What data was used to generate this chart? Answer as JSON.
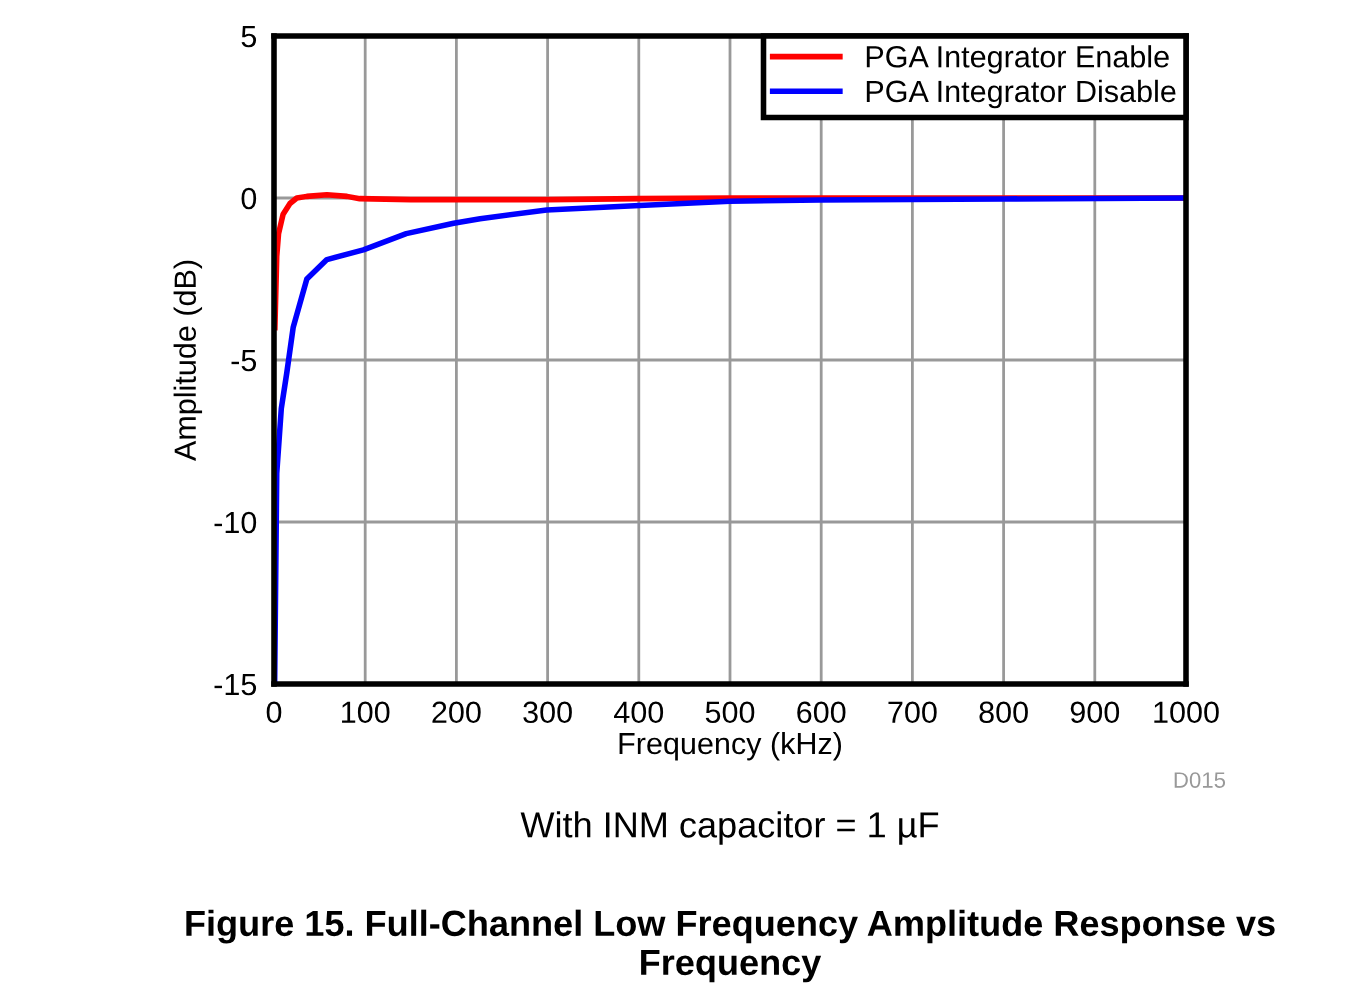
{
  "chart_data": {
    "type": "line",
    "title": "Figure 15. Full-Channel Low Frequency Amplitude Response vs Frequency",
    "subtitle": "With INM capacitor = 1 µF",
    "xlabel": "Frequency (kHz)",
    "ylabel": "Amplitude (dB)",
    "annotations": [
      "D015"
    ],
    "xlim": [
      0,
      1000
    ],
    "xticks": [
      0,
      100,
      200,
      300,
      400,
      500,
      600,
      700,
      800,
      900,
      1000
    ],
    "ylim": [
      -15,
      5
    ],
    "yticks": [
      -15,
      -10,
      -5,
      0,
      5
    ],
    "grid": true,
    "legend": "top right",
    "line_style": "solid",
    "marker": "none",
    "series": [
      {
        "name": "PGA Integrator Enable",
        "color": "#ff0000",
        "x": [
          1,
          3,
          5,
          10,
          17.5,
          25,
          36,
          58,
          80,
          94,
          150,
          200,
          300,
          400,
          500,
          700,
          1000
        ],
        "values": [
          -4,
          -1.8,
          -1.1,
          -0.5,
          -0.17,
          0,
          0.05,
          0.1,
          0.05,
          -0.02,
          -0.05,
          -0.05,
          -0.05,
          -0.02,
          0,
          0,
          0
        ]
      },
      {
        "name": "PGA Integrator Disable",
        "color": "#0000ff",
        "x": [
          0.7,
          3,
          8,
          14,
          21,
          36,
          58,
          98,
          145,
          197,
          226,
          299,
          401,
          500,
          599,
          800,
          1000
        ],
        "values": [
          -15,
          -8.5,
          -6.5,
          -5.4,
          -4,
          -2.5,
          -1.9,
          -1.6,
          -1.1,
          -0.78,
          -0.64,
          -0.37,
          -0.23,
          -0.1,
          -0.06,
          -0.03,
          0
        ]
      }
    ]
  }
}
